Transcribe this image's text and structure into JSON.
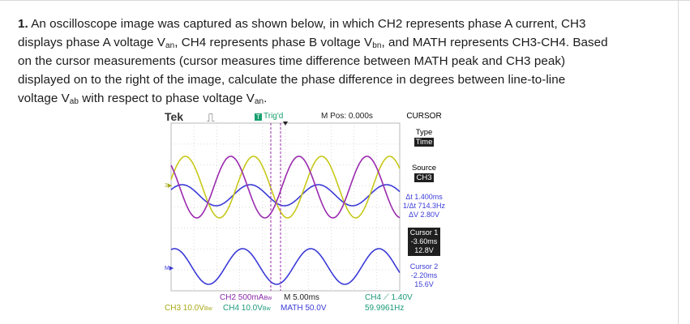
{
  "question": {
    "number": "1.",
    "line1": "An oscilloscope image was captured as shown below, in which CH2 represents phase A current, CH3",
    "line2_a": "displays phase A voltage V",
    "line2_sub1": "an",
    "line2_b": ", CH4 represents phase B voltage V",
    "line2_sub2": "bn",
    "line2_c": ", and MATH represents CH3-CH4. Based",
    "line3": "on the cursor measurements (cursor measures time difference between MATH peak and CH3 peak)",
    "line4": "displayed on to the right of the image, calculate the phase difference in degrees between line-to-line",
    "line5_a": "voltage V",
    "line5_sub1": "ab",
    "line5_b": " with respect to phase voltage V",
    "line5_sub2": "an",
    "line5_c": "."
  },
  "scope": {
    "brand": "Tek",
    "trigger_status": "Trig'd",
    "trigger_marker": "T",
    "position": "M Pos: 0.000s",
    "ch_markers": {
      "ch3": "3▶",
      "math": "M▶"
    },
    "bottom": {
      "ch2": "CH2  500mA",
      "ch2_suffix": "Bw",
      "timebase": "M 5.00ms",
      "ch3": "CH3  10.0V",
      "ch3_suffix": "Bw",
      "ch4": "CH4  10.0V",
      "ch4_suffix": "Bw",
      "math": "MATH 50.0V",
      "trigger": "CH4 ⟋ 1.40V",
      "frequency": "59.9961Hz"
    },
    "colors": {
      "ch2": "#3b3bd8",
      "ch3": "#c8c81a",
      "ch4": "#7cc44c",
      "math": "#9a2aae",
      "cursor": "#9a2aae"
    }
  },
  "menu": {
    "title": "CURSOR",
    "type_label": "Type",
    "type_value": "Time",
    "source_label": "Source",
    "source_value": "CH3",
    "delta_t": "Δt 1.400ms",
    "inv_delta_t": "1/Δt 714.3Hz",
    "delta_v": "ΔV 2.80V",
    "cursor1_label": "Cursor 1",
    "cursor1_time": "-3.60ms",
    "cursor1_volt": "12.8V",
    "cursor2_label": "Cursor 2",
    "cursor2_time": "-2.20ms",
    "cursor2_volt": "15.6V"
  }
}
